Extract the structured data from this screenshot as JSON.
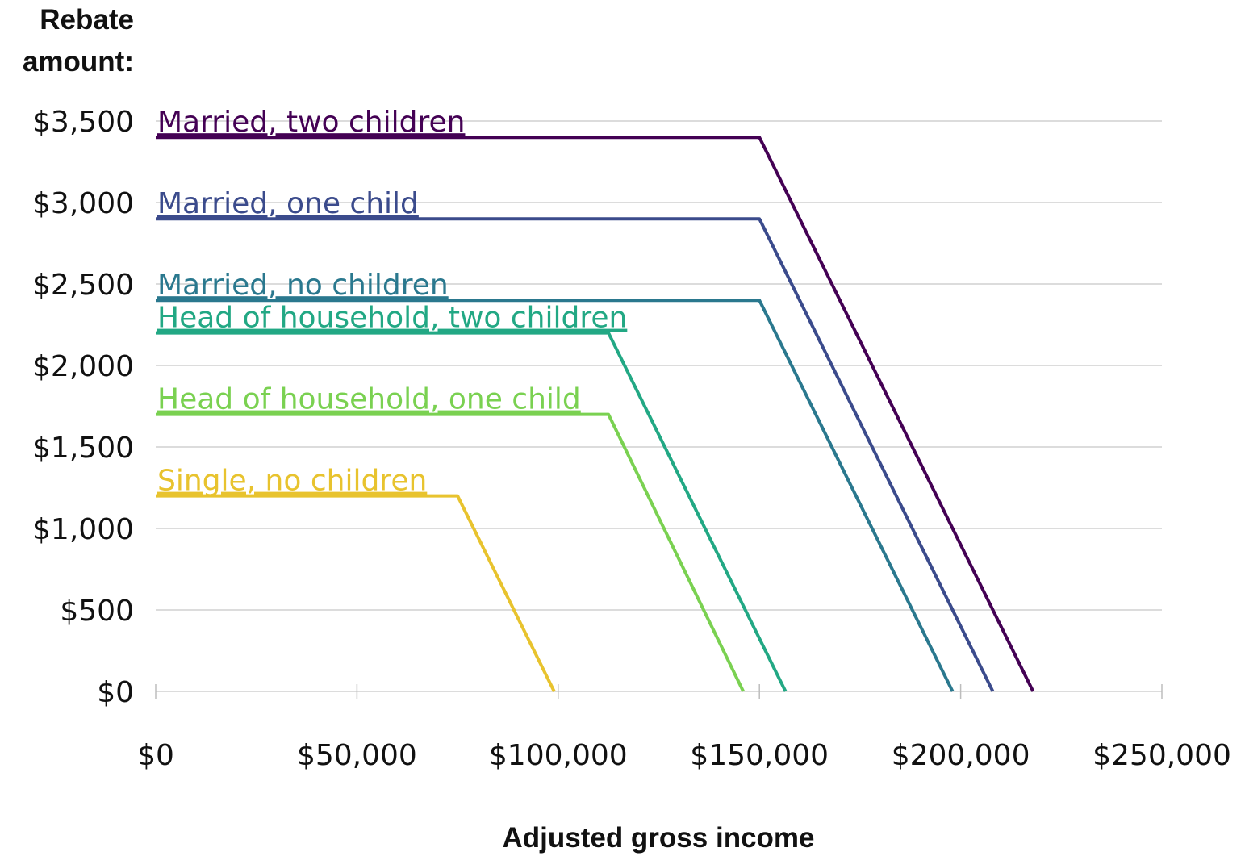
{
  "chart_data": {
    "type": "line",
    "ylabel_line1": "Rebate",
    "ylabel_line2": "amount:",
    "xlabel": "Adjusted gross income",
    "xlim": [
      0,
      250000
    ],
    "ylim": [
      0,
      3500
    ],
    "grid": true,
    "x_ticks": [
      0,
      50000,
      100000,
      150000,
      200000,
      250000
    ],
    "x_tick_labels": [
      "$0",
      "$50,000",
      "$100,000",
      "$150,000",
      "$200,000",
      "$250,000"
    ],
    "y_ticks": [
      0,
      500,
      1000,
      1500,
      2000,
      2500,
      3000,
      3500
    ],
    "y_tick_labels": [
      "$0",
      "$500",
      "$1,000",
      "$1,500",
      "$2,000",
      "$2,500",
      "$3,000",
      "$3,500"
    ],
    "series": [
      {
        "name": "Married, two children",
        "color": "#440154",
        "x": [
          0,
          150000,
          218000
        ],
        "y": [
          3400,
          3400,
          0
        ]
      },
      {
        "name": "Married, one child",
        "color": "#3b4b8c",
        "x": [
          0,
          150000,
          208000
        ],
        "y": [
          2900,
          2900,
          0
        ]
      },
      {
        "name": "Married, no children",
        "color": "#2a788e",
        "x": [
          0,
          150000,
          198000
        ],
        "y": [
          2400,
          2400,
          0
        ]
      },
      {
        "name": "Head of household, two children",
        "color": "#22a884",
        "x": [
          0,
          112500,
          156500
        ],
        "y": [
          2200,
          2200,
          0
        ]
      },
      {
        "name": "Head of household, one child",
        "color": "#7ad151",
        "x": [
          0,
          112500,
          146000
        ],
        "y": [
          1700,
          1700,
          0
        ]
      },
      {
        "name": "Single, no children",
        "color": "#e8c32e",
        "x": [
          0,
          75000,
          99000
        ],
        "y": [
          1200,
          1200,
          0
        ]
      }
    ]
  }
}
